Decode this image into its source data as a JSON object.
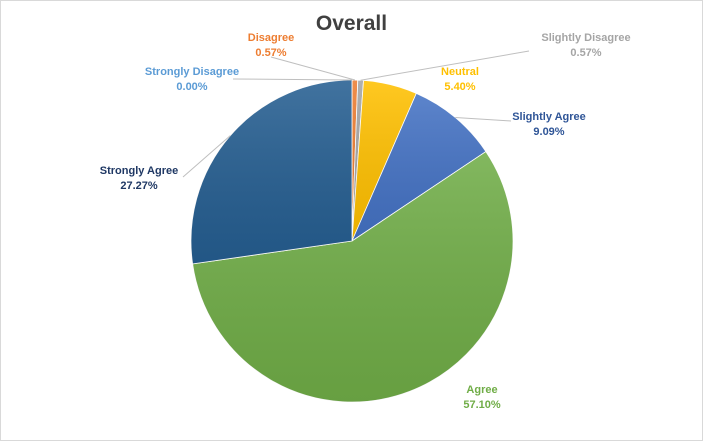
{
  "chart_data": {
    "type": "pie",
    "title": "Overall",
    "slices": [
      {
        "name": "Disagree",
        "value": 0.57,
        "label_value": "0.57%",
        "color": "#ed7d31",
        "label_color": "#ed7d31"
      },
      {
        "name": "Slightly Disagree",
        "value": 0.57,
        "label_value": "0.57%",
        "color": "#a5a5a5",
        "label_color": "#a5a5a5"
      },
      {
        "name": "Neutral",
        "value": 5.4,
        "label_value": "5.40%",
        "color": "#ffc000",
        "label_color": "#ffc000"
      },
      {
        "name": "Slightly Agree",
        "value": 9.09,
        "label_value": "9.09%",
        "color": "#4472c4",
        "label_color": "#2f5597"
      },
      {
        "name": "Agree",
        "value": 57.1,
        "label_value": "57.10%",
        "color": "#70ad47",
        "label_color": "#70ad47"
      },
      {
        "name": "Strongly Agree",
        "value": 27.27,
        "label_value": "27.27%",
        "color": "#255e91",
        "label_color": "#1f3864"
      },
      {
        "name": "Strongly Disagree",
        "value": 0.0,
        "label_value": "0.00%",
        "color": "#5b9bd5",
        "label_color": "#5b9bd5"
      }
    ],
    "leader_line_color": "#bfbfbf",
    "legend": "none"
  }
}
